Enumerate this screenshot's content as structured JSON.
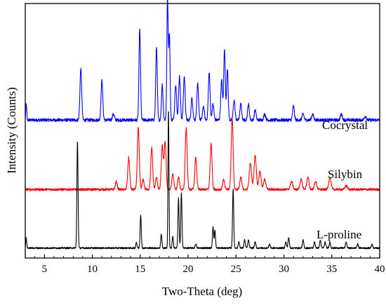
{
  "chart_data": {
    "type": "line",
    "title": "",
    "xlabel": "Two-Theta (deg)",
    "ylabel": "Intensity (Counts)",
    "xlim": [
      3,
      40
    ],
    "xticks": [
      5,
      10,
      15,
      20,
      25,
      30,
      35,
      40
    ],
    "y_ticks_shown": false,
    "grid": false,
    "legend": "none (series labeled inline at right)",
    "units": "relative intensity, 0-100 per pattern (stacked with vertical offsets)",
    "series": [
      {
        "name": "Cocrystal",
        "color": "#0000ff",
        "offset": 62,
        "baseline": 4,
        "noise": 0.8,
        "peaks": [
          {
            "x": 3.1,
            "y": 8,
            "w": 0.05
          },
          {
            "x": 8.8,
            "y": 26,
            "w": 0.09
          },
          {
            "x": 11.0,
            "y": 20,
            "w": 0.09
          },
          {
            "x": 12.2,
            "y": 3,
            "w": 0.1
          },
          {
            "x": 14.95,
            "y": 46,
            "w": 0.08
          },
          {
            "x": 16.7,
            "y": 37,
            "w": 0.08
          },
          {
            "x": 17.3,
            "y": 18,
            "w": 0.08
          },
          {
            "x": 17.85,
            "y": 62,
            "w": 0.07
          },
          {
            "x": 18.05,
            "y": 43,
            "w": 0.07
          },
          {
            "x": 18.7,
            "y": 18,
            "w": 0.09
          },
          {
            "x": 19.1,
            "y": 22,
            "w": 0.09
          },
          {
            "x": 19.6,
            "y": 22,
            "w": 0.09
          },
          {
            "x": 20.4,
            "y": 11,
            "w": 0.09
          },
          {
            "x": 21.0,
            "y": 18,
            "w": 0.09
          },
          {
            "x": 21.6,
            "y": 7,
            "w": 0.09
          },
          {
            "x": 22.2,
            "y": 24,
            "w": 0.09
          },
          {
            "x": 22.6,
            "y": 8,
            "w": 0.09
          },
          {
            "x": 23.5,
            "y": 20,
            "w": 0.09
          },
          {
            "x": 23.8,
            "y": 36,
            "w": 0.08
          },
          {
            "x": 24.1,
            "y": 26,
            "w": 0.08
          },
          {
            "x": 24.8,
            "y": 10,
            "w": 0.09
          },
          {
            "x": 25.5,
            "y": 8,
            "w": 0.09
          },
          {
            "x": 26.3,
            "y": 8,
            "w": 0.09
          },
          {
            "x": 27.0,
            "y": 5,
            "w": 0.09
          },
          {
            "x": 28.0,
            "y": 3,
            "w": 0.1
          },
          {
            "x": 31.0,
            "y": 7,
            "w": 0.09
          },
          {
            "x": 32.0,
            "y": 3,
            "w": 0.1
          },
          {
            "x": 33.0,
            "y": 3,
            "w": 0.1
          },
          {
            "x": 36.0,
            "y": 3,
            "w": 0.1
          },
          {
            "x": 38.5,
            "y": 2,
            "w": 0.1
          }
        ]
      },
      {
        "name": "Silybin",
        "color": "#ff0000",
        "offset": 29,
        "baseline": 2,
        "noise": 0.6,
        "peaks": [
          {
            "x": 12.5,
            "y": 4,
            "w": 0.1
          },
          {
            "x": 13.8,
            "y": 16,
            "w": 0.1
          },
          {
            "x": 14.8,
            "y": 31,
            "w": 0.1
          },
          {
            "x": 15.3,
            "y": 5,
            "w": 0.1
          },
          {
            "x": 16.2,
            "y": 21,
            "w": 0.1
          },
          {
            "x": 16.7,
            "y": 6,
            "w": 0.1
          },
          {
            "x": 17.3,
            "y": 22,
            "w": 0.1
          },
          {
            "x": 17.6,
            "y": 24,
            "w": 0.1
          },
          {
            "x": 18.4,
            "y": 8,
            "w": 0.1
          },
          {
            "x": 19.0,
            "y": 6,
            "w": 0.1
          },
          {
            "x": 19.8,
            "y": 31,
            "w": 0.1
          },
          {
            "x": 20.8,
            "y": 16,
            "w": 0.1
          },
          {
            "x": 22.4,
            "y": 23,
            "w": 0.1
          },
          {
            "x": 23.7,
            "y": 5,
            "w": 0.1
          },
          {
            "x": 24.6,
            "y": 36,
            "w": 0.1
          },
          {
            "x": 25.5,
            "y": 6,
            "w": 0.1
          },
          {
            "x": 26.5,
            "y": 13,
            "w": 0.12
          },
          {
            "x": 27.0,
            "y": 17,
            "w": 0.12
          },
          {
            "x": 27.5,
            "y": 9,
            "w": 0.12
          },
          {
            "x": 28.0,
            "y": 5,
            "w": 0.12
          },
          {
            "x": 30.8,
            "y": 4,
            "w": 0.12
          },
          {
            "x": 31.8,
            "y": 5,
            "w": 0.12
          },
          {
            "x": 32.5,
            "y": 6,
            "w": 0.12
          },
          {
            "x": 33.3,
            "y": 4,
            "w": 0.12
          },
          {
            "x": 34.8,
            "y": 6,
            "w": 0.12
          },
          {
            "x": 36.5,
            "y": 2,
            "w": 0.12
          }
        ]
      },
      {
        "name": "L-proline",
        "color": "#000000",
        "offset": 0,
        "baseline": 1.5,
        "noise": 0.4,
        "peaks": [
          {
            "x": 3.1,
            "y": 5,
            "w": 0.05
          },
          {
            "x": 8.45,
            "y": 54,
            "w": 0.06
          },
          {
            "x": 14.6,
            "y": 3,
            "w": 0.06
          },
          {
            "x": 15.05,
            "y": 17,
            "w": 0.06
          },
          {
            "x": 17.2,
            "y": 7,
            "w": 0.06
          },
          {
            "x": 17.95,
            "y": 70,
            "w": 0.05
          },
          {
            "x": 18.4,
            "y": 6,
            "w": 0.06
          },
          {
            "x": 19.0,
            "y": 25,
            "w": 0.06
          },
          {
            "x": 19.3,
            "y": 28,
            "w": 0.06
          },
          {
            "x": 20.8,
            "y": 2,
            "w": 0.07
          },
          {
            "x": 22.6,
            "y": 11,
            "w": 0.06
          },
          {
            "x": 22.8,
            "y": 9,
            "w": 0.06
          },
          {
            "x": 24.7,
            "y": 30,
            "w": 0.06
          },
          {
            "x": 25.3,
            "y": 3,
            "w": 0.07
          },
          {
            "x": 25.9,
            "y": 4,
            "w": 0.07
          },
          {
            "x": 26.3,
            "y": 4,
            "w": 0.07
          },
          {
            "x": 27.0,
            "y": 3,
            "w": 0.07
          },
          {
            "x": 28.5,
            "y": 2,
            "w": 0.07
          },
          {
            "x": 30.2,
            "y": 3,
            "w": 0.07
          },
          {
            "x": 30.5,
            "y": 5,
            "w": 0.07
          },
          {
            "x": 32.0,
            "y": 4,
            "w": 0.07
          },
          {
            "x": 33.2,
            "y": 3,
            "w": 0.07
          },
          {
            "x": 33.8,
            "y": 4,
            "w": 0.07
          },
          {
            "x": 34.3,
            "y": 3,
            "w": 0.07
          },
          {
            "x": 34.8,
            "y": 3,
            "w": 0.07
          },
          {
            "x": 36.5,
            "y": 3,
            "w": 0.07
          },
          {
            "x": 37.7,
            "y": 2,
            "w": 0.07
          },
          {
            "x": 39.2,
            "y": 2,
            "w": 0.07
          }
        ]
      }
    ]
  }
}
